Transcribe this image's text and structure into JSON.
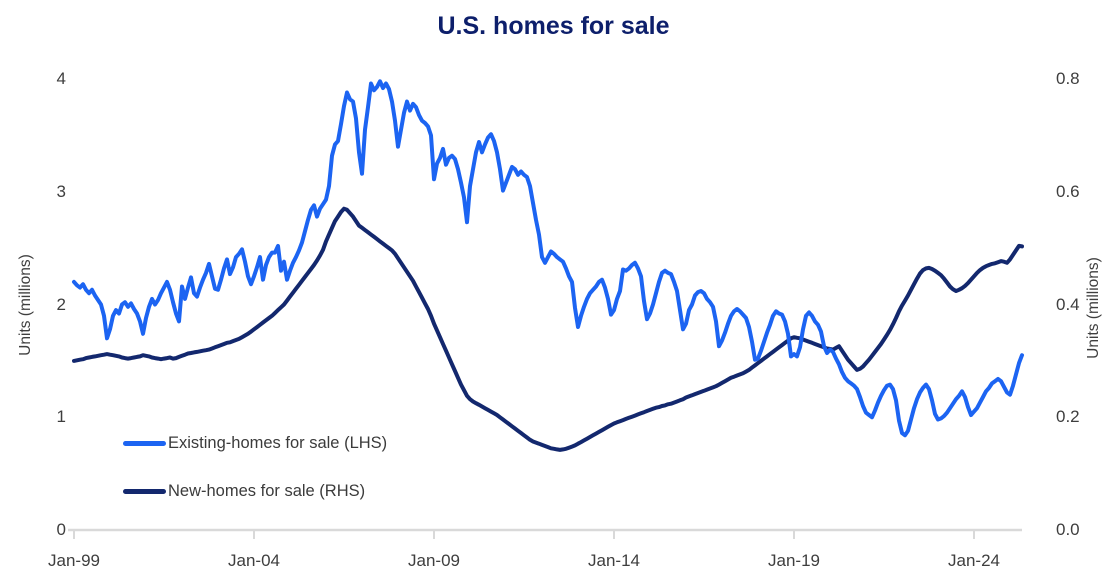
{
  "chart_data": {
    "type": "line",
    "title": "U.S. homes for sale",
    "title_color": "#0d1f6b",
    "background": "#ffffff",
    "axis_color": "#d9d9d9",
    "text_color": "#3e3e3e",
    "grid": false,
    "legend_position": "inside-lower-left",
    "x_axis": {
      "tick_labels": [
        "Jan-99",
        "Jan-04",
        "Jan-09",
        "Jan-14",
        "Jan-19",
        "Jan-24"
      ],
      "start": "1999-01",
      "end": "2025-05",
      "frequency": "monthly"
    },
    "left_axis": {
      "label": "Units (millions)",
      "tick_labels": [
        "4",
        "3",
        "2",
        "1",
        "0"
      ],
      "range": [
        0,
        4
      ]
    },
    "right_axis": {
      "label": "Units (millions)",
      "tick_labels": [
        "0.8",
        "0.6",
        "0.4",
        "0.2",
        "0.0"
      ],
      "range": [
        0,
        0.8
      ]
    },
    "series": [
      {
        "name": "Existing-homes for sale (LHS)",
        "axis": "left",
        "color": "#1c64f2",
        "values": [
          2.2,
          2.17,
          2.15,
          2.18,
          2.13,
          2.1,
          2.13,
          2.08,
          2.04,
          2.0,
          1.9,
          1.7,
          1.78,
          1.9,
          1.95,
          1.92,
          2.0,
          2.02,
          1.98,
          2.01,
          1.96,
          1.92,
          1.85,
          1.74,
          1.88,
          1.98,
          2.05,
          2.0,
          2.04,
          2.1,
          2.15,
          2.2,
          2.13,
          2.02,
          1.92,
          1.85,
          2.16,
          2.05,
          2.15,
          2.24,
          2.1,
          2.07,
          2.15,
          2.22,
          2.28,
          2.36,
          2.25,
          2.14,
          2.13,
          2.22,
          2.32,
          2.4,
          2.27,
          2.33,
          2.42,
          2.45,
          2.49,
          2.38,
          2.25,
          2.18,
          2.25,
          2.33,
          2.42,
          2.22,
          2.35,
          2.42,
          2.46,
          2.46,
          2.52,
          2.3,
          2.38,
          2.22,
          2.3,
          2.37,
          2.42,
          2.48,
          2.55,
          2.65,
          2.75,
          2.84,
          2.88,
          2.78,
          2.85,
          2.89,
          2.93,
          3.05,
          3.32,
          3.42,
          3.45,
          3.6,
          3.76,
          3.88,
          3.82,
          3.8,
          3.65,
          3.35,
          3.16,
          3.55,
          3.75,
          3.96,
          3.9,
          3.93,
          3.98,
          3.92,
          3.96,
          3.91,
          3.8,
          3.63,
          3.4,
          3.55,
          3.7,
          3.8,
          3.72,
          3.78,
          3.75,
          3.68,
          3.63,
          3.61,
          3.58,
          3.5,
          3.11,
          3.25,
          3.3,
          3.38,
          3.24,
          3.3,
          3.32,
          3.29,
          3.2,
          3.08,
          2.95,
          2.73,
          3.05,
          3.2,
          3.35,
          3.44,
          3.35,
          3.42,
          3.48,
          3.51,
          3.45,
          3.35,
          3.2,
          3.01,
          3.08,
          3.15,
          3.22,
          3.2,
          3.15,
          3.18,
          3.15,
          3.13,
          3.05,
          2.9,
          2.75,
          2.62,
          2.42,
          2.37,
          2.42,
          2.47,
          2.45,
          2.42,
          2.4,
          2.38,
          2.32,
          2.25,
          2.2,
          1.97,
          1.8,
          1.9,
          1.98,
          2.05,
          2.1,
          2.13,
          2.16,
          2.2,
          2.22,
          2.15,
          2.05,
          1.91,
          1.95,
          2.05,
          2.12,
          2.31,
          2.3,
          2.32,
          2.35,
          2.37,
          2.32,
          2.25,
          2.03,
          1.87,
          1.92,
          2.0,
          2.1,
          2.2,
          2.28,
          2.3,
          2.28,
          2.27,
          2.2,
          2.12,
          1.95,
          1.78,
          1.83,
          1.95,
          2.0,
          2.08,
          2.11,
          2.12,
          2.1,
          2.05,
          2.02,
          1.98,
          1.85,
          1.63,
          1.68,
          1.75,
          1.83,
          1.9,
          1.94,
          1.96,
          1.94,
          1.91,
          1.88,
          1.8,
          1.67,
          1.51,
          1.52,
          1.59,
          1.67,
          1.75,
          1.82,
          1.9,
          1.94,
          1.92,
          1.91,
          1.85,
          1.74,
          1.54,
          1.56,
          1.54,
          1.62,
          1.78,
          1.9,
          1.93,
          1.9,
          1.85,
          1.82,
          1.76,
          1.63,
          1.57,
          1.6,
          1.58,
          1.52,
          1.47,
          1.4,
          1.35,
          1.32,
          1.3,
          1.28,
          1.25,
          1.18,
          1.1,
          1.04,
          1.02,
          1.0,
          1.06,
          1.13,
          1.19,
          1.24,
          1.28,
          1.29,
          1.25,
          1.15,
          0.97,
          0.86,
          0.84,
          0.88,
          0.98,
          1.08,
          1.16,
          1.22,
          1.26,
          1.29,
          1.25,
          1.15,
          1.03,
          0.98,
          0.99,
          1.01,
          1.04,
          1.08,
          1.12,
          1.16,
          1.19,
          1.23,
          1.18,
          1.09,
          1.02,
          1.05,
          1.08,
          1.13,
          1.18,
          1.23,
          1.26,
          1.3,
          1.32,
          1.34,
          1.32,
          1.27,
          1.22,
          1.2,
          1.28,
          1.38,
          1.48,
          1.55
        ]
      },
      {
        "name": "New-homes for sale (RHS)",
        "axis": "right",
        "color": "#13286e",
        "values": [
          0.3,
          0.301,
          0.302,
          0.303,
          0.305,
          0.306,
          0.307,
          0.308,
          0.309,
          0.31,
          0.311,
          0.312,
          0.311,
          0.31,
          0.309,
          0.308,
          0.306,
          0.305,
          0.304,
          0.305,
          0.306,
          0.307,
          0.308,
          0.31,
          0.309,
          0.308,
          0.306,
          0.305,
          0.304,
          0.303,
          0.304,
          0.305,
          0.306,
          0.304,
          0.305,
          0.307,
          0.309,
          0.311,
          0.313,
          0.314,
          0.315,
          0.316,
          0.317,
          0.318,
          0.319,
          0.32,
          0.322,
          0.324,
          0.326,
          0.328,
          0.33,
          0.332,
          0.333,
          0.335,
          0.337,
          0.339,
          0.342,
          0.345,
          0.348,
          0.352,
          0.356,
          0.36,
          0.364,
          0.368,
          0.372,
          0.376,
          0.38,
          0.385,
          0.39,
          0.395,
          0.4,
          0.407,
          0.414,
          0.421,
          0.428,
          0.435,
          0.442,
          0.449,
          0.456,
          0.463,
          0.47,
          0.478,
          0.487,
          0.497,
          0.512,
          0.524,
          0.536,
          0.548,
          0.556,
          0.564,
          0.57,
          0.568,
          0.562,
          0.556,
          0.548,
          0.54,
          0.536,
          0.532,
          0.528,
          0.524,
          0.52,
          0.516,
          0.512,
          0.508,
          0.504,
          0.5,
          0.496,
          0.49,
          0.482,
          0.474,
          0.466,
          0.458,
          0.45,
          0.442,
          0.432,
          0.422,
          0.412,
          0.402,
          0.392,
          0.38,
          0.366,
          0.354,
          0.342,
          0.33,
          0.318,
          0.306,
          0.294,
          0.282,
          0.27,
          0.258,
          0.248,
          0.238,
          0.232,
          0.228,
          0.225,
          0.222,
          0.219,
          0.216,
          0.213,
          0.21,
          0.207,
          0.204,
          0.2,
          0.196,
          0.192,
          0.188,
          0.184,
          0.18,
          0.176,
          0.172,
          0.168,
          0.164,
          0.16,
          0.157,
          0.155,
          0.153,
          0.151,
          0.149,
          0.147,
          0.145,
          0.144,
          0.143,
          0.142,
          0.143,
          0.144,
          0.146,
          0.148,
          0.15,
          0.153,
          0.156,
          0.159,
          0.162,
          0.165,
          0.168,
          0.171,
          0.174,
          0.177,
          0.18,
          0.183,
          0.186,
          0.189,
          0.191,
          0.193,
          0.195,
          0.197,
          0.199,
          0.201,
          0.203,
          0.205,
          0.207,
          0.209,
          0.211,
          0.213,
          0.215,
          0.217,
          0.218,
          0.22,
          0.221,
          0.223,
          0.224,
          0.226,
          0.228,
          0.23,
          0.232,
          0.235,
          0.237,
          0.239,
          0.241,
          0.243,
          0.245,
          0.247,
          0.249,
          0.251,
          0.253,
          0.255,
          0.258,
          0.261,
          0.264,
          0.267,
          0.27,
          0.272,
          0.274,
          0.276,
          0.278,
          0.281,
          0.284,
          0.288,
          0.292,
          0.296,
          0.3,
          0.304,
          0.308,
          0.312,
          0.316,
          0.32,
          0.324,
          0.328,
          0.332,
          0.336,
          0.34,
          0.342,
          0.341,
          0.34,
          0.338,
          0.336,
          0.334,
          0.332,
          0.33,
          0.328,
          0.326,
          0.324,
          0.322,
          0.321,
          0.32,
          0.323,
          0.326,
          0.318,
          0.31,
          0.302,
          0.296,
          0.29,
          0.284,
          0.286,
          0.29,
          0.296,
          0.302,
          0.309,
          0.316,
          0.323,
          0.33,
          0.338,
          0.346,
          0.355,
          0.365,
          0.376,
          0.388,
          0.398,
          0.407,
          0.416,
          0.426,
          0.436,
          0.446,
          0.455,
          0.461,
          0.464,
          0.465,
          0.463,
          0.46,
          0.456,
          0.452,
          0.446,
          0.439,
          0.432,
          0.427,
          0.424,
          0.426,
          0.429,
          0.433,
          0.438,
          0.444,
          0.45,
          0.456,
          0.461,
          0.465,
          0.468,
          0.47,
          0.472,
          0.473,
          0.475,
          0.477,
          0.476,
          0.474,
          0.48,
          0.488,
          0.496,
          0.504,
          0.503
        ]
      }
    ]
  }
}
